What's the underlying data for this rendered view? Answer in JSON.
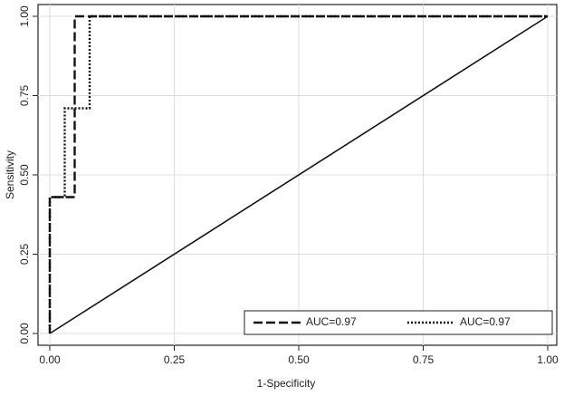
{
  "chart_data": {
    "type": "line",
    "xlabel": "1-Specificity",
    "ylabel": "Sensitivity",
    "series": [
      {
        "name": "AUC=0.97",
        "color": "#111111",
        "style": "dashed",
        "x": [
          0,
          0,
          0.05,
          0.05,
          1
        ],
        "values": [
          0,
          0.43,
          0.43,
          1,
          1
        ]
      },
      {
        "name": "AUC=0.97",
        "color": "#111111",
        "style": "dotted",
        "x": [
          0,
          0,
          0.03,
          0.03,
          0.08,
          0.08,
          1
        ],
        "values": [
          0,
          0.43,
          0.43,
          0.71,
          0.71,
          1,
          1
        ]
      }
    ],
    "reference_line": {
      "color": "#111111",
      "x": [
        0,
        1
      ],
      "values": [
        0,
        1
      ]
    },
    "xlim": [
      0,
      1
    ],
    "ylim": [
      0,
      1
    ],
    "xticks": [
      {
        "value": 0,
        "label": "0.00"
      },
      {
        "value": 0.25,
        "label": "0.25"
      },
      {
        "value": 0.5,
        "label": "0.50"
      },
      {
        "value": 0.75,
        "label": "0.75"
      },
      {
        "value": 1,
        "label": "1.00"
      }
    ],
    "yticks": [
      {
        "value": 0,
        "label": "0.00"
      },
      {
        "value": 0.25,
        "label": "0.25"
      },
      {
        "value": 0.5,
        "label": "0.50"
      },
      {
        "value": 0.75,
        "label": "0.75"
      },
      {
        "value": 1,
        "label": "1.00"
      }
    ],
    "grid": true,
    "legend": "bottom-right"
  }
}
